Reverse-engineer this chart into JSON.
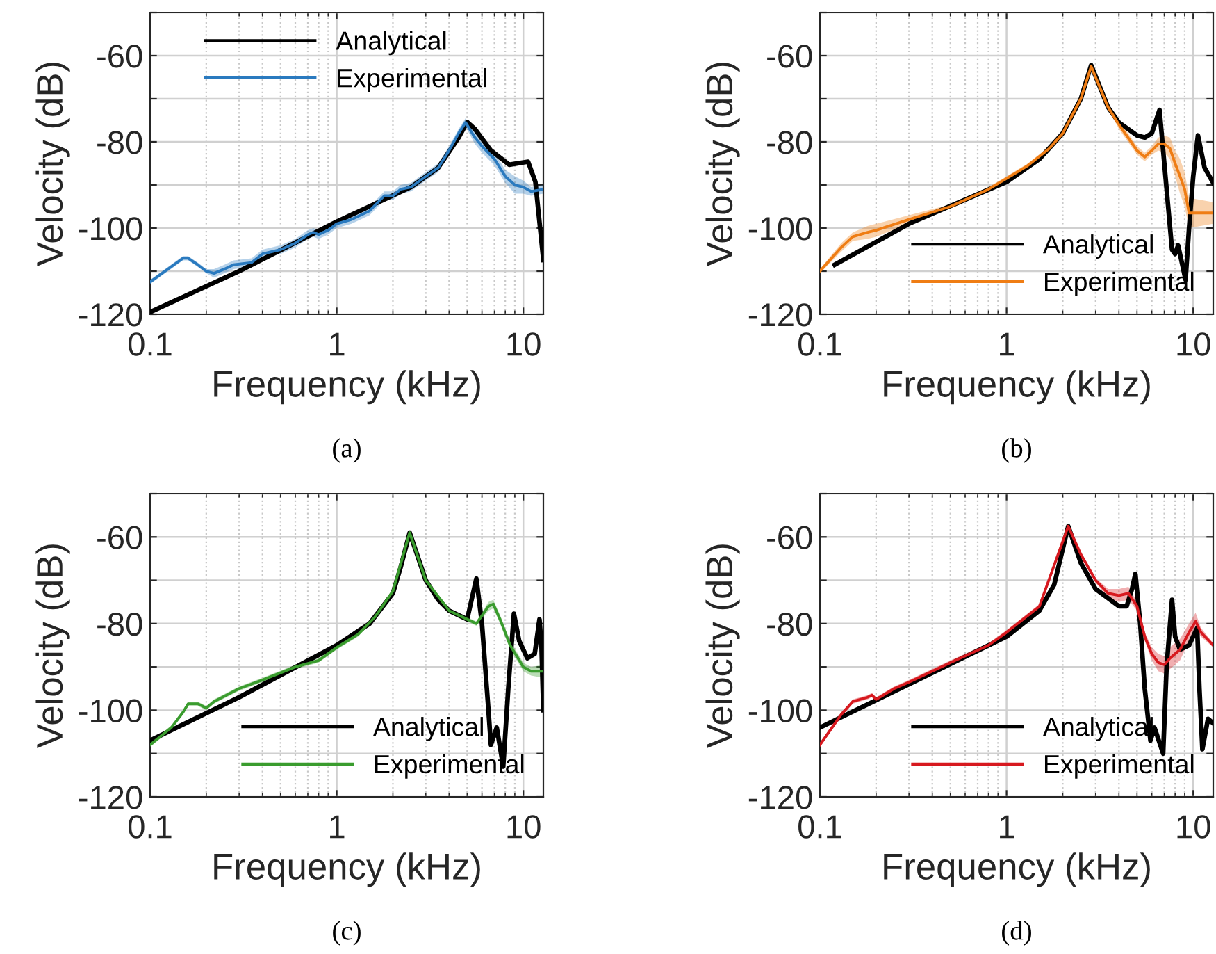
{
  "chart_data": [
    {
      "type": "line",
      "xlabel": "Frequency (kHz)",
      "ylabel": "Velocity (dB)",
      "annotations": [
        "(a)"
      ],
      "log": "x",
      "xlim": [
        0.1,
        12.8
      ],
      "xticks": [
        0.1,
        1,
        10
      ],
      "ylim": [
        -120,
        -50
      ],
      "yticks": [
        -120,
        {
          "value": -110,
          "label": null
        },
        -100,
        {
          "value": -90,
          "label": null
        },
        -80,
        {
          "value": -70,
          "label": null
        },
        -60,
        {
          "value": -50,
          "label": null
        }
      ],
      "grid": true,
      "legend": "top",
      "series": [
        {
          "name": "Analytical",
          "color": "#000000",
          "x": [
            0.1,
            0.3,
            1,
            2.5,
            3.5,
            4.5,
            5.0,
            5.5,
            6.7,
            8.4,
            10.6,
            11.6,
            12.8
          ],
          "values": [
            -119.5,
            -110,
            -98.5,
            -90.5,
            -86,
            -79,
            -75.4,
            -77,
            -82,
            -85.3,
            -84.6,
            -89.3,
            -107.4
          ]
        },
        {
          "name": "Experimental",
          "color": "#2a7abf",
          "x": [
            0.1,
            0.15,
            0.16,
            0.18,
            0.2,
            0.22,
            0.25,
            0.28,
            0.35,
            0.4,
            0.5,
            0.6,
            0.7,
            0.75,
            0.8,
            0.9,
            1.0,
            1.2,
            1.5,
            1.8,
            2.0,
            2.2,
            2.5,
            3,
            3.5,
            4,
            4.5,
            4.9,
            5.5,
            6,
            7,
            8,
            9,
            10,
            11,
            12.8
          ],
          "values": [
            -112.5,
            -107,
            -107,
            -108.5,
            -110,
            -110.5,
            -109.5,
            -108.5,
            -108,
            -106,
            -105,
            -103.5,
            -101.5,
            -101,
            -101.5,
            -100.5,
            -99,
            -98,
            -96,
            -92.5,
            -92.5,
            -91,
            -90.5,
            -88,
            -86,
            -82,
            -78,
            -75.5,
            -79,
            -81,
            -84,
            -88,
            -90,
            -90.5,
            -91.5,
            -91
          ],
          "lower": [
            -113,
            -107.5,
            -107.5,
            -109,
            -110.5,
            -111.5,
            -110.5,
            -109.5,
            -109,
            -107,
            -106,
            -104.5,
            -102.5,
            -102,
            -102.5,
            -101.5,
            -100,
            -99,
            -97,
            -93.5,
            -93.5,
            -92,
            -91.5,
            -89,
            -87,
            -83,
            -79,
            -76.5,
            -80.5,
            -82.5,
            -85.5,
            -89.5,
            -92,
            -92,
            -92.5,
            -92
          ],
          "upper": [
            -112,
            -106.5,
            -106.5,
            -108,
            -109.5,
            -109.5,
            -108.5,
            -107.5,
            -107,
            -105,
            -104,
            -102.5,
            -100.5,
            -100,
            -100.5,
            -99.5,
            -98,
            -97,
            -95,
            -91.5,
            -91.5,
            -90,
            -89.5,
            -87,
            -85,
            -81,
            -77,
            -74.5,
            -77.5,
            -79.5,
            -82.5,
            -86.5,
            -88,
            -89,
            -90.5,
            -90
          ]
        }
      ]
    },
    {
      "type": "line",
      "xlabel": "Frequency (kHz)",
      "ylabel": "Velocity (dB)",
      "annotations": [
        "(b)"
      ],
      "log": "x",
      "xlim": [
        0.1,
        12.8
      ],
      "xticks": [
        0.1,
        1,
        10
      ],
      "ylim": [
        -120,
        -50
      ],
      "yticks": [
        -120,
        {
          "value": -110,
          "label": null
        },
        -100,
        {
          "value": -90,
          "label": null
        },
        -80,
        {
          "value": -70,
          "label": null
        },
        -60,
        {
          "value": -50,
          "label": null
        }
      ],
      "grid": true,
      "legend": "bottom right",
      "series": [
        {
          "name": "Analytical",
          "color": "#000000",
          "x": [
            0.12,
            0.3,
            1,
            1.5,
            2,
            2.5,
            2.84,
            3.5,
            4,
            5,
            5.5,
            6,
            6.6,
            7,
            7.7,
            8,
            8.3,
            9.1,
            9.5,
            10,
            10.6,
            11.5,
            12.8
          ],
          "values": [
            -108.5,
            -99,
            -89.3,
            -84,
            -78,
            -70,
            -62.2,
            -72,
            -75.5,
            -78.5,
            -79,
            -78,
            -72.6,
            -85,
            -105,
            -106,
            -104,
            -112,
            -100,
            -88,
            -78.5,
            -86,
            -89.5
          ]
        },
        {
          "name": "Experimental",
          "color": "#ef7d14",
          "x": [
            0.1,
            0.13,
            0.15,
            0.18,
            0.2,
            0.3,
            0.5,
            0.8,
            1.0,
            1.3,
            1.7,
            2,
            2.5,
            2.84,
            3.5,
            4,
            5,
            5.5,
            6,
            6.5,
            7,
            7.5,
            8,
            8.5,
            9,
            9.5,
            12.8
          ],
          "values": [
            -110,
            -104.5,
            -102,
            -101,
            -100.5,
            -98,
            -95,
            -91,
            -88.5,
            -85.5,
            -81.5,
            -78,
            -70,
            -62.5,
            -72,
            -76,
            -82,
            -83.5,
            -82,
            -80.5,
            -80.5,
            -81.5,
            -85,
            -88,
            -91,
            -96.5,
            -96.5
          ],
          "lower": [
            -110.5,
            -105.5,
            -103,
            -102.5,
            -102,
            -99,
            -95.5,
            -91.5,
            -89,
            -86,
            -82,
            -78.5,
            -70.5,
            -63,
            -72.5,
            -77,
            -83,
            -84.5,
            -83,
            -82,
            -82.5,
            -84,
            -88,
            -92,
            -95,
            -100,
            -99
          ],
          "upper": [
            -109.5,
            -103.5,
            -101,
            -99.5,
            -99,
            -97,
            -94.5,
            -90.5,
            -88,
            -85,
            -81,
            -77.5,
            -69.5,
            -62,
            -71.5,
            -75,
            -81,
            -82.5,
            -81,
            -79,
            -78.5,
            -79,
            -82,
            -84,
            -87,
            -93,
            -94
          ]
        }
      ]
    },
    {
      "type": "line",
      "xlabel": "Frequency (kHz)",
      "ylabel": "Velocity (dB)",
      "annotations": [
        "(c)"
      ],
      "log": "x",
      "xlim": [
        0.1,
        12.8
      ],
      "xticks": [
        0.1,
        1,
        10
      ],
      "ylim": [
        -120,
        -50
      ],
      "yticks": [
        -120,
        {
          "value": -110,
          "label": null
        },
        -100,
        {
          "value": -90,
          "label": null
        },
        -80,
        {
          "value": -70,
          "label": null
        },
        -60,
        {
          "value": -50,
          "label": null
        }
      ],
      "grid": true,
      "legend": "bottom right",
      "series": [
        {
          "name": "Analytical",
          "color": "#000000",
          "x": [
            0.1,
            0.3,
            1,
            1.5,
            2,
            2.2,
            2.46,
            3,
            3.5,
            4,
            5,
            5.6,
            6,
            6.5,
            6.7,
            7.2,
            7.8,
            8.3,
            8.9,
            9.5,
            10.5,
            11.5,
            12.2,
            12.5,
            12.8
          ],
          "values": [
            -107,
            -97,
            -85,
            -80,
            -73,
            -67,
            -59,
            -70,
            -74.5,
            -77,
            -79,
            -69.6,
            -80,
            -100,
            -108,
            -104,
            -113,
            -95,
            -77.7,
            -84,
            -88,
            -87,
            -79,
            -85,
            -100
          ]
        },
        {
          "name": "Experimental",
          "color": "#3a9c2e",
          "x": [
            0.1,
            0.13,
            0.15,
            0.16,
            0.18,
            0.2,
            0.22,
            0.3,
            0.4,
            0.6,
            0.8,
            1,
            1.3,
            1.6,
            2,
            2.46,
            3,
            4,
            5,
            5.6,
            6.5,
            6.9,
            7.5,
            8.5,
            10,
            11,
            12.8
          ],
          "values": [
            -108,
            -104,
            -100.5,
            -98.5,
            -98.5,
            -99.5,
            -98,
            -95,
            -93,
            -90,
            -88.5,
            -85.5,
            -82.5,
            -78.5,
            -72.5,
            -59,
            -70,
            -77,
            -79,
            -80,
            -76,
            -75.5,
            -79,
            -85,
            -90,
            -91,
            -91
          ],
          "lower": [
            -108.5,
            -104.5,
            -101,
            -99,
            -99,
            -100,
            -98.5,
            -95.5,
            -93.5,
            -90.5,
            -89,
            -86,
            -83,
            -79,
            -73,
            -59.5,
            -70.5,
            -77.5,
            -79.5,
            -80.5,
            -77,
            -76.5,
            -80,
            -86,
            -91,
            -92,
            -92.5
          ],
          "upper": [
            -107.5,
            -103.5,
            -100,
            -98,
            -98,
            -99,
            -97.5,
            -94.5,
            -92.5,
            -89.5,
            -88,
            -85,
            -82,
            -78,
            -72,
            -58.5,
            -69.5,
            -76.5,
            -78.5,
            -79.5,
            -75,
            -74.5,
            -78,
            -84,
            -89,
            -90,
            -89.5
          ]
        }
      ]
    },
    {
      "type": "line",
      "xlabel": "Frequency (kHz)",
      "ylabel": "Velocity (dB)",
      "annotations": [
        "(d)"
      ],
      "log": "x",
      "xlim": [
        0.1,
        12.8
      ],
      "xticks": [
        0.1,
        1,
        10
      ],
      "ylim": [
        -120,
        -50
      ],
      "yticks": [
        -120,
        {
          "value": -110,
          "label": null
        },
        -100,
        {
          "value": -90,
          "label": null
        },
        -80,
        {
          "value": -70,
          "label": null
        },
        -60,
        {
          "value": -50,
          "label": null
        }
      ],
      "grid": true,
      "legend": "bottom right",
      "series": [
        {
          "name": "Analytical",
          "color": "#000000",
          "x": [
            0.1,
            0.3,
            1,
            1.5,
            1.8,
            2.14,
            2.5,
            3,
            4,
            4.4,
            4.7,
            4.9,
            5.2,
            5.5,
            5.9,
            6.2,
            6.9,
            7.2,
            7.7,
            8,
            8.5,
            9.5,
            10.5,
            10.8,
            11.2,
            12,
            12.8
          ],
          "values": [
            -104,
            -94,
            -83,
            -77,
            -71,
            -57.5,
            -66,
            -72,
            -76,
            -76,
            -72,
            -68.5,
            -80,
            -95,
            -107,
            -104,
            -110,
            -90,
            -74.5,
            -83,
            -86,
            -85,
            -81,
            -95,
            -109,
            -102,
            -103
          ]
        },
        {
          "name": "Experimental",
          "color": "#d7191f",
          "x": [
            0.1,
            0.13,
            0.15,
            0.18,
            0.19,
            0.2,
            0.25,
            0.3,
            0.5,
            0.8,
            1,
            1.5,
            2.14,
            2.5,
            3,
            3.5,
            4,
            4.5,
            5,
            5.5,
            6,
            6.5,
            7,
            7.5,
            8.5,
            9.5,
            10.3,
            11,
            12.8
          ],
          "values": [
            -108,
            -101,
            -98,
            -97,
            -96.5,
            -97.5,
            -95,
            -93.5,
            -89,
            -85,
            -82,
            -76,
            -57.5,
            -64,
            -70,
            -73,
            -73.5,
            -73,
            -76,
            -83,
            -87,
            -89,
            -89.5,
            -88,
            -86,
            -82,
            -79.5,
            -82,
            -85
          ],
          "lower": [
            -108.5,
            -101.5,
            -98.5,
            -97.5,
            -97,
            -98,
            -95.5,
            -94,
            -89.5,
            -85.5,
            -82.5,
            -76.5,
            -58,
            -64.5,
            -70.5,
            -74,
            -75,
            -74.5,
            -77,
            -84,
            -88.5,
            -91,
            -91.5,
            -90.5,
            -88.5,
            -84,
            -81.5,
            -83,
            -85.5
          ],
          "upper": [
            -107.5,
            -100.5,
            -97.5,
            -96.5,
            -96,
            -97,
            -94.5,
            -93,
            -88.5,
            -84.5,
            -81.5,
            -75.5,
            -57,
            -63.5,
            -69.5,
            -72,
            -72,
            -71.5,
            -75,
            -82,
            -85.5,
            -87,
            -87.5,
            -85.5,
            -83.5,
            -80,
            -77.5,
            -81,
            -84.5
          ]
        }
      ]
    }
  ]
}
